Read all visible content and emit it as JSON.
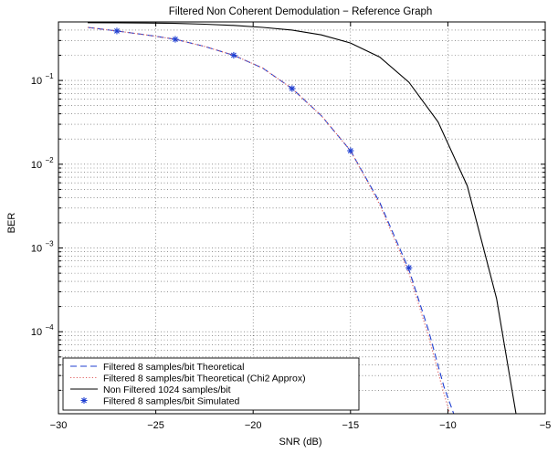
{
  "chart_data": {
    "type": "line",
    "title": "Filtered Non Coherent Demodulation − Reference Graph",
    "xlabel": "SNR (dB)",
    "ylabel": "BER",
    "xlim": [
      -30,
      -5
    ],
    "ylim": [
      1.05e-05,
      0.5
    ],
    "yscale": "log",
    "grid": true,
    "legend_position": "bottom-left",
    "x_ticks": [
      {
        "value": -30,
        "label": "−30"
      },
      {
        "value": -25,
        "label": "−25"
      },
      {
        "value": -20,
        "label": "−20"
      },
      {
        "value": -15,
        "label": "−15"
      },
      {
        "value": -10,
        "label": "−10"
      },
      {
        "value": -5,
        "label": "−5"
      }
    ],
    "y_ticks": [
      {
        "value": 0.1,
        "base": "10",
        "exp": "−1"
      },
      {
        "value": 0.01,
        "base": "10",
        "exp": "−2"
      },
      {
        "value": 0.001,
        "base": "10",
        "exp": "−3"
      },
      {
        "value": 0.0001,
        "base": "10",
        "exp": "−4"
      }
    ],
    "series": [
      {
        "name": "Filtered 8 samples/bit Theoretical",
        "style": "dashed",
        "marker": "none",
        "color": "#1f3fd1",
        "x": [
          -28.5,
          -27,
          -25.5,
          -24,
          -22.5,
          -21,
          -19.5,
          -18,
          -16.5,
          -15,
          -13.5,
          -12,
          -11,
          -10.2,
          -9.7
        ],
        "y": [
          0.43,
          0.39,
          0.35,
          0.31,
          0.255,
          0.2,
          0.14,
          0.08,
          0.038,
          0.0145,
          0.0035,
          0.00055,
          0.000105,
          2.2e-05,
          1.05e-05
        ]
      },
      {
        "name": "Filtered 8 samples/bit Theoretical (Chi2 Approx)",
        "style": "dotted",
        "marker": "none",
        "color": "#e06060",
        "x": [
          -28.5,
          -27,
          -25.5,
          -24,
          -22.5,
          -21,
          -19.5,
          -18,
          -16.5,
          -15,
          -13.5,
          -12,
          -11,
          -10.3,
          -9.9
        ],
        "y": [
          0.43,
          0.39,
          0.35,
          0.31,
          0.255,
          0.2,
          0.14,
          0.08,
          0.038,
          0.0145,
          0.0033,
          0.0005,
          9e-05,
          2.2e-05,
          1.05e-05
        ]
      },
      {
        "name": "Non Filtered 1024 samples/bit",
        "style": "solid",
        "marker": "none",
        "color": "#000000",
        "x": [
          -28.5,
          -27,
          -25.5,
          -24,
          -22.5,
          -21,
          -19.5,
          -18,
          -16.5,
          -15,
          -13.5,
          -12,
          -10.5,
          -9,
          -7.5,
          -6.5
        ],
        "y": [
          0.49,
          0.488,
          0.485,
          0.48,
          0.47,
          0.455,
          0.43,
          0.4,
          0.35,
          0.28,
          0.19,
          0.095,
          0.032,
          0.0055,
          0.00025,
          1.05e-05
        ]
      },
      {
        "name": "Filtered 8 samples/bit Simulated",
        "style": "none",
        "marker": "asterisk",
        "color": "#1f3fd1",
        "x": [
          -27,
          -24,
          -21,
          -18,
          -15,
          -12
        ],
        "y": [
          0.39,
          0.31,
          0.2,
          0.08,
          0.0145,
          0.00058
        ]
      }
    ]
  }
}
